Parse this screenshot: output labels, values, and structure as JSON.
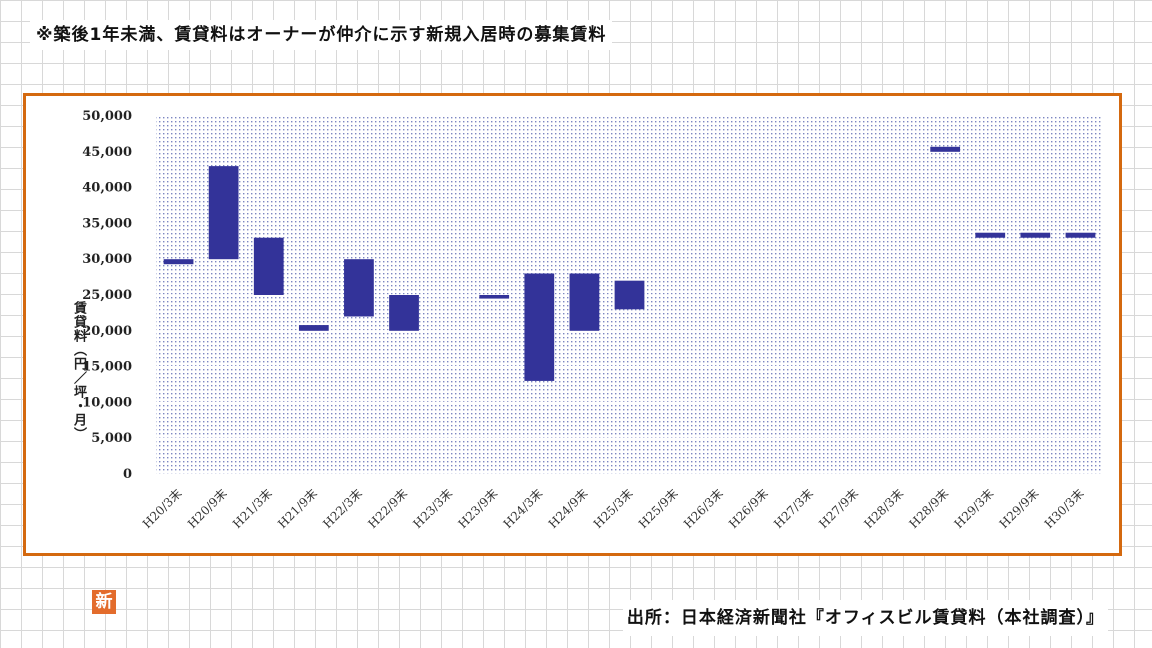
{
  "header": {
    "note": "※築後1年未満、賃貸料はオーナーが仲介に示す新規入居時の募集賃料"
  },
  "footer": {
    "source": "出所：日本経済新聞社『オフィスビル賃貸料（本社調査）』"
  },
  "logo": {
    "text": "新",
    "color": "#e36c2c"
  },
  "colors": {
    "frame": "#d4690f",
    "bar": "#333399",
    "plot_dots": "#7c86c2"
  },
  "chart_data": {
    "type": "bar",
    "subtype": "floating-range",
    "ylabel": "賃貸料（円／坪・月）",
    "ylim": [
      0,
      50000
    ],
    "yticks": [
      0,
      5000,
      10000,
      15000,
      20000,
      25000,
      30000,
      35000,
      40000,
      45000,
      50000
    ],
    "ytick_labels": [
      "0",
      "5,000",
      "10,000",
      "15,000",
      "20,000",
      "25,000",
      "30,000",
      "35,000",
      "40,000",
      "45,000",
      "50,000"
    ],
    "grid": true,
    "legend": "none",
    "categories": [
      "H20/3末",
      "H20/9末",
      "H21/3末",
      "H21/9末",
      "H22/3末",
      "H22/9末",
      "H23/3末",
      "H23/9末",
      "H24/3末",
      "H24/9末",
      "H25/3末",
      "H25/9末",
      "H26/3末",
      "H26/9末",
      "H27/3末",
      "H27/9末",
      "H28/3末",
      "H28/9末",
      "H29/3末",
      "H29/9末",
      "H30/3末"
    ],
    "low": [
      29300,
      30000,
      25000,
      20000,
      22000,
      20000,
      null,
      24500,
      13000,
      20000,
      23000,
      null,
      null,
      null,
      null,
      null,
      null,
      45000,
      33000,
      33000,
      33000
    ],
    "high": [
      30000,
      43000,
      33000,
      20800,
      30000,
      25000,
      null,
      25000,
      28000,
      28000,
      27000,
      null,
      null,
      null,
      null,
      null,
      null,
      45700,
      33700,
      33700,
      33700
    ]
  }
}
